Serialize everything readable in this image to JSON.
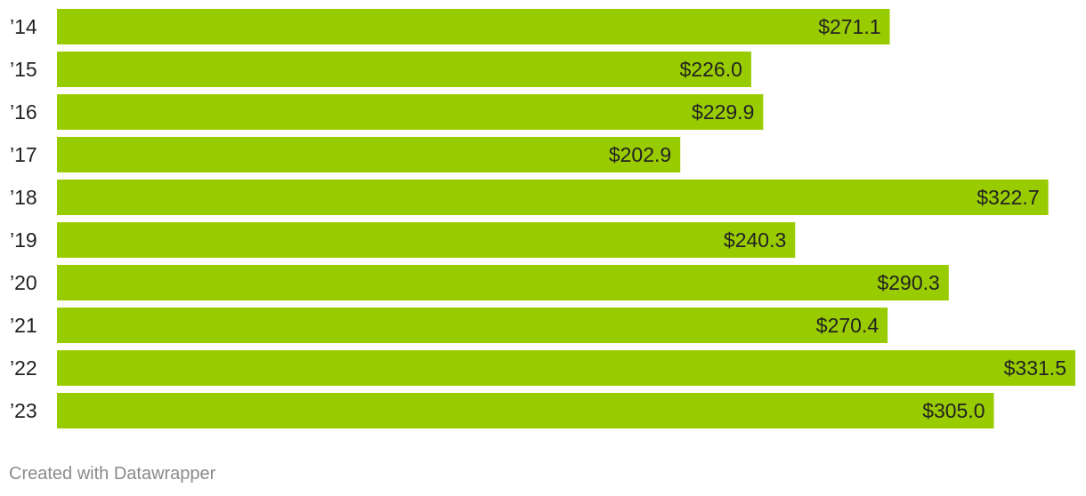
{
  "chart_data": {
    "type": "bar",
    "orientation": "horizontal",
    "categories": [
      "’14",
      "’15",
      "’16",
      "’17",
      "’18",
      "’19",
      "’20",
      "’21",
      "’22",
      "’23"
    ],
    "values": [
      271.1,
      226.0,
      229.9,
      202.9,
      322.7,
      240.3,
      290.3,
      270.4,
      331.5,
      305.0
    ],
    "value_labels": [
      "$271.1",
      "$226.0",
      "$229.9",
      "$202.9",
      "$322.7",
      "$240.3",
      "$290.3",
      "$270.4",
      "$331.5",
      "$305.0"
    ],
    "title": "",
    "xlabel": "",
    "ylabel": "",
    "bar_color": "#99cc00",
    "grid": false,
    "legend": "none"
  },
  "footer": {
    "credit": "Created with Datawrapper"
  }
}
